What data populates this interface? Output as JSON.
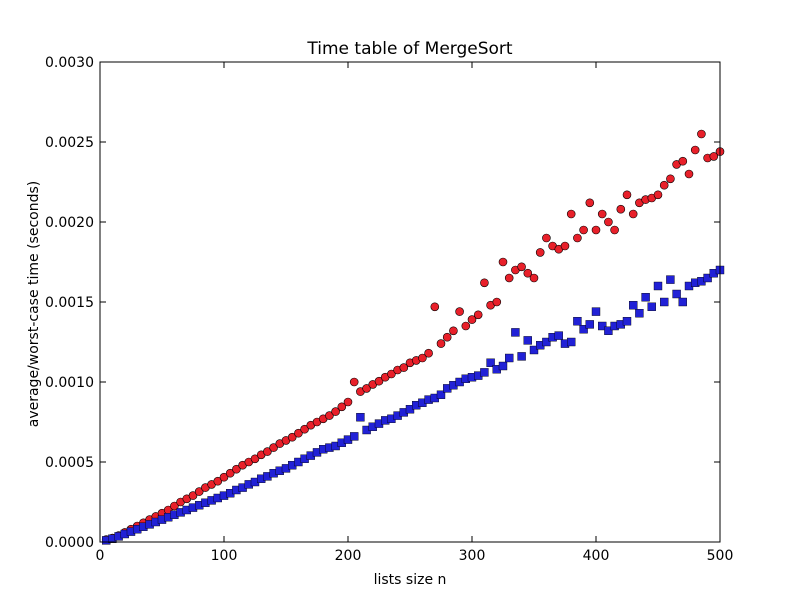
{
  "chart_data": {
    "type": "scatter",
    "title": "Time table of MergeSort",
    "xlabel": "lists size n",
    "ylabel": "average/worst-case time (seconds)",
    "xlim": [
      0,
      500
    ],
    "ylim": [
      0,
      0.003
    ],
    "xticks": [
      "0",
      "100",
      "200",
      "300",
      "400",
      "500"
    ],
    "yticks": [
      "0.0000",
      "0.0005",
      "0.0010",
      "0.0015",
      "0.0020",
      "0.0025",
      "0.0030"
    ],
    "grid": false,
    "legend": "none",
    "series": [
      {
        "marker": "circle",
        "color": "#e8202a",
        "x": [
          5,
          10,
          15,
          20,
          25,
          30,
          35,
          40,
          45,
          50,
          55,
          60,
          65,
          70,
          75,
          80,
          85,
          90,
          95,
          100,
          105,
          110,
          115,
          120,
          125,
          130,
          135,
          140,
          145,
          150,
          155,
          160,
          165,
          170,
          175,
          180,
          185,
          190,
          195,
          200,
          205,
          210,
          215,
          220,
          225,
          230,
          235,
          240,
          245,
          250,
          255,
          260,
          265,
          270,
          275,
          280,
          285,
          290,
          295,
          300,
          305,
          310,
          315,
          320,
          325,
          330,
          335,
          340,
          345,
          350,
          355,
          360,
          365,
          370,
          375,
          380,
          385,
          390,
          395,
          400,
          405,
          410,
          415,
          420,
          425,
          430,
          435,
          440,
          445,
          450,
          455,
          460,
          465,
          470,
          475,
          480,
          485,
          490,
          495,
          500
        ],
        "y": [
          1.5e-05,
          2.5e-05,
          4e-05,
          6e-05,
          8e-05,
          0.0001,
          0.00012,
          0.00014,
          0.00016,
          0.00018,
          0.0002,
          0.000225,
          0.00025,
          0.00027,
          0.00029,
          0.000315,
          0.00034,
          0.00036,
          0.00038,
          0.000405,
          0.00043,
          0.000455,
          0.00048,
          0.0005,
          0.00052,
          0.000545,
          0.000565,
          0.00059,
          0.000615,
          0.000635,
          0.000655,
          0.00068,
          0.000705,
          0.00073,
          0.00075,
          0.00077,
          0.00079,
          0.000815,
          0.000845,
          0.000875,
          0.001,
          0.00094,
          0.00096,
          0.000985,
          0.001005,
          0.00103,
          0.00105,
          0.001075,
          0.00109,
          0.00112,
          0.001135,
          0.00115,
          0.00118,
          0.00147,
          0.00124,
          0.00128,
          0.00132,
          0.00144,
          0.00135,
          0.00139,
          0.00142,
          0.00162,
          0.00148,
          0.0015,
          0.00175,
          0.00165,
          0.0017,
          0.00172,
          0.00168,
          0.00165,
          0.00181,
          0.0019,
          0.00185,
          0.00183,
          0.00185,
          0.00205,
          0.0019,
          0.00195,
          0.00212,
          0.00195,
          0.00205,
          0.002,
          0.00195,
          0.00208,
          0.00217,
          0.00205,
          0.00212,
          0.00214,
          0.00215,
          0.00217,
          0.00223,
          0.00227,
          0.00236,
          0.00238,
          0.0023,
          0.00245,
          0.00255,
          0.0024,
          0.00241,
          0.00244
        ]
      },
      {
        "marker": "square",
        "color": "#2121d6",
        "x": [
          5,
          10,
          15,
          20,
          25,
          30,
          35,
          40,
          45,
          50,
          55,
          60,
          65,
          70,
          75,
          80,
          85,
          90,
          95,
          100,
          105,
          110,
          115,
          120,
          125,
          130,
          135,
          140,
          145,
          150,
          155,
          160,
          165,
          170,
          175,
          180,
          185,
          190,
          195,
          200,
          205,
          210,
          215,
          220,
          225,
          230,
          235,
          240,
          245,
          250,
          255,
          260,
          265,
          270,
          275,
          280,
          285,
          290,
          295,
          300,
          305,
          310,
          315,
          320,
          325,
          330,
          335,
          340,
          345,
          350,
          355,
          360,
          365,
          370,
          375,
          380,
          385,
          390,
          395,
          400,
          405,
          410,
          415,
          420,
          425,
          430,
          435,
          440,
          445,
          450,
          455,
          460,
          465,
          470,
          475,
          480,
          485,
          490,
          495,
          500
        ],
        "y": [
          1e-05,
          2e-05,
          3.5e-05,
          5e-05,
          6.5e-05,
          8e-05,
          9.5e-05,
          0.00011,
          0.000125,
          0.00014,
          0.000155,
          0.00017,
          0.000185,
          0.0002,
          0.000215,
          0.00023,
          0.000245,
          0.00026,
          0.000275,
          0.00029,
          0.000305,
          0.000325,
          0.00034,
          0.00036,
          0.000375,
          0.000395,
          0.00041,
          0.00043,
          0.000445,
          0.00046,
          0.00048,
          0.0005,
          0.00052,
          0.00054,
          0.00056,
          0.00058,
          0.00059,
          0.0006,
          0.00062,
          0.00064,
          0.00066,
          0.00078,
          0.0007,
          0.00072,
          0.00074,
          0.00076,
          0.00077,
          0.00079,
          0.00081,
          0.00083,
          0.000855,
          0.00087,
          0.00089,
          0.0009,
          0.00092,
          0.00096,
          0.00098,
          0.001,
          0.00102,
          0.00103,
          0.00104,
          0.00106,
          0.00112,
          0.00108,
          0.0011,
          0.00115,
          0.00131,
          0.00116,
          0.00126,
          0.0012,
          0.00123,
          0.00125,
          0.00128,
          0.00129,
          0.00124,
          0.00125,
          0.00138,
          0.00133,
          0.00136,
          0.00144,
          0.00135,
          0.00132,
          0.00135,
          0.00136,
          0.00138,
          0.00148,
          0.00143,
          0.00153,
          0.00147,
          0.0016,
          0.0015,
          0.00164,
          0.00155,
          0.0015,
          0.0016,
          0.00162,
          0.00163,
          0.00165,
          0.00168,
          0.0017
        ]
      }
    ]
  }
}
